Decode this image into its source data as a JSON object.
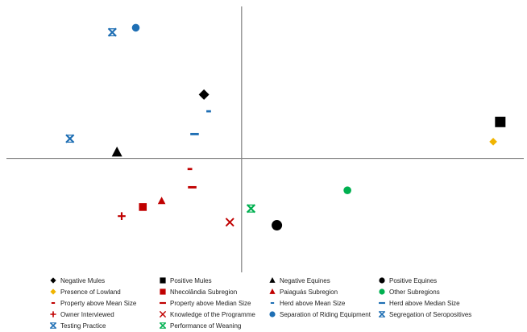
{
  "chart_data": {
    "type": "scatter",
    "title": "",
    "xlabel": "",
    "ylabel": "",
    "axes": "crossing at origin, no tick labels",
    "grid": false,
    "legend_position": "bottom",
    "xlim": [
      -1.0,
      1.2
    ],
    "ylim": [
      -0.75,
      1.0
    ],
    "series": [
      {
        "name": "Negative Mules",
        "marker": "diamond",
        "color": "#000000",
        "x": -0.16,
        "y": 0.42
      },
      {
        "name": "Positive Mules",
        "marker": "square",
        "color": "#000000",
        "x": 1.1,
        "y": 0.24
      },
      {
        "name": "Negative Equines",
        "marker": "triangle",
        "color": "#000000",
        "x": -0.53,
        "y": 0.04
      },
      {
        "name": "Positive Equines",
        "marker": "circle",
        "color": "#000000",
        "x": 0.15,
        "y": -0.44
      },
      {
        "name": "Presence of Lowland",
        "marker": "diamond",
        "color": "#f0b400",
        "x": 1.07,
        "y": 0.11
      },
      {
        "name": "Nhecolândia Subregion",
        "marker": "square",
        "color": "#c00000",
        "x": -0.42,
        "y": -0.32
      },
      {
        "name": "Paiaguás Subregion",
        "marker": "triangle",
        "color": "#c00000",
        "x": -0.34,
        "y": -0.28
      },
      {
        "name": "Other Subregions",
        "marker": "circle",
        "color": "#00b050",
        "x": 0.45,
        "y": -0.21
      },
      {
        "name": "Property above Mean Size",
        "marker": "short-dash",
        "color": "#c00000",
        "x": -0.22,
        "y": -0.07
      },
      {
        "name": "Property above Median Size",
        "marker": "dash",
        "color": "#c00000",
        "x": -0.21,
        "y": -0.19
      },
      {
        "name": "Herd above Mean Size",
        "marker": "short-dash",
        "color": "#1f6fb4",
        "x": -0.14,
        "y": 0.31
      },
      {
        "name": "Herd above Median Size",
        "marker": "dash",
        "color": "#1f6fb4",
        "x": -0.2,
        "y": 0.16
      },
      {
        "name": "Owner Interviewed",
        "marker": "plus",
        "color": "#c00000",
        "x": -0.51,
        "y": -0.38
      },
      {
        "name": "Knowledge of the Programme",
        "marker": "x",
        "color": "#c00000",
        "x": -0.05,
        "y": -0.42
      },
      {
        "name": "Separation of Riding Equipment",
        "marker": "circle",
        "color": "#1f6fb4",
        "x": -0.45,
        "y": 0.86
      },
      {
        "name": "Segregation of Seropositives",
        "marker": "star-x",
        "color": "#1f6fb4",
        "x": -0.73,
        "y": 0.13
      },
      {
        "name": "Testing Practice",
        "marker": "star-x",
        "color": "#1f6fb4",
        "x": -0.55,
        "y": 0.83
      },
      {
        "name": "Performance of Weaning",
        "marker": "star-x",
        "color": "#00b050",
        "x": 0.04,
        "y": -0.33
      }
    ]
  }
}
